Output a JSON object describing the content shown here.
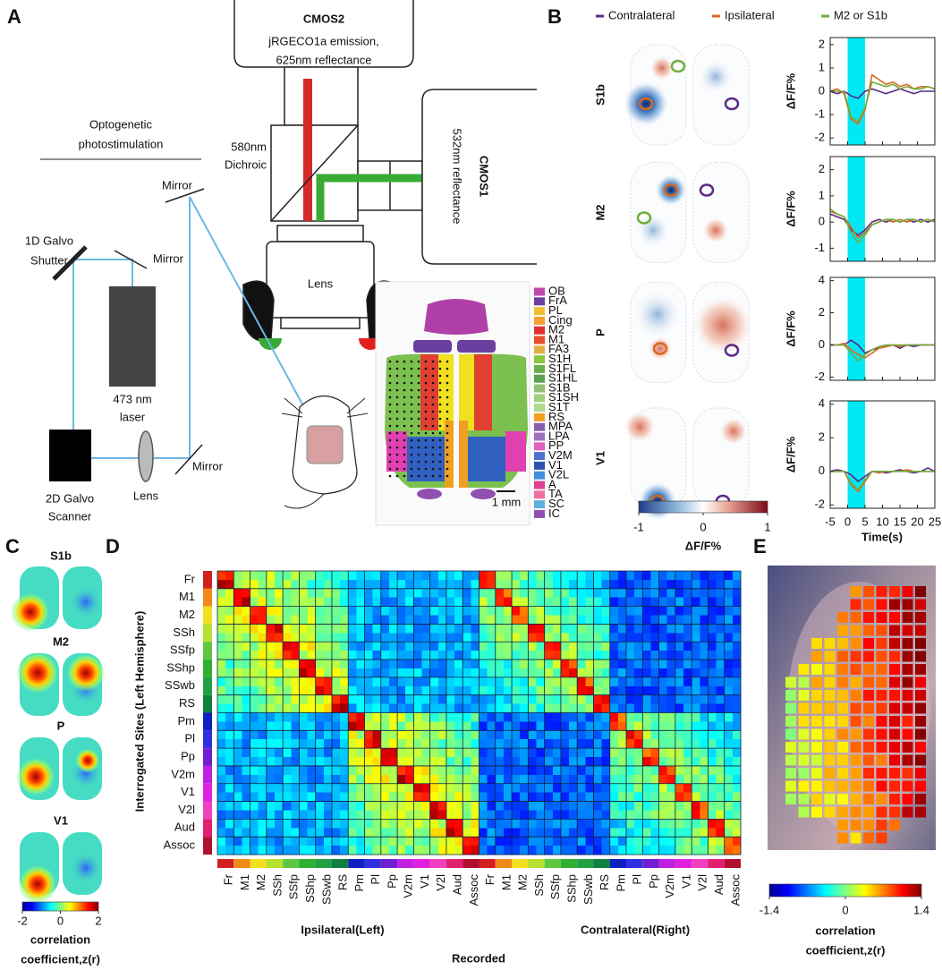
{
  "panel_a": {
    "label": "A",
    "cmos2": {
      "title": "CMOS2",
      "line1": "jRGECO1a emission,",
      "line2": "625nm reflectance"
    },
    "cmos1": {
      "title": "CMOS1",
      "subtitle": "532nm reflectance"
    },
    "dichroic": [
      "580nm",
      "Dichroic"
    ],
    "photostim": [
      "Optogenetic",
      "photostimulation"
    ],
    "mirrors": [
      "Mirror",
      "Mirror",
      "Mirror"
    ],
    "shutter": [
      "1D Galvo",
      "Shutter"
    ],
    "laser": [
      "473 nm",
      "laser"
    ],
    "scanner": [
      "2D Galvo",
      "Scanner"
    ],
    "lens_optic": "Lens",
    "lens_camera": "Lens",
    "scale_bar": "1 mm",
    "atlas_legend": [
      {
        "label": "OB",
        "color": "#c04ab0"
      },
      {
        "label": "FrA",
        "color": "#6b3fa0"
      },
      {
        "label": "PL",
        "color": "#f0c030"
      },
      {
        "label": "Cing",
        "color": "#f5a030"
      },
      {
        "label": "M2",
        "color": "#e03030"
      },
      {
        "label": "M1",
        "color": "#e8502a"
      },
      {
        "label": "FA3",
        "color": "#e0b040"
      },
      {
        "label": "S1H",
        "color": "#8cc63f"
      },
      {
        "label": "S1FL",
        "color": "#6ab04c"
      },
      {
        "label": "S1HL",
        "color": "#5aa050"
      },
      {
        "label": "S1B",
        "color": "#90c070"
      },
      {
        "label": "S1SH",
        "color": "#a0d080"
      },
      {
        "label": "S1T",
        "color": "#b0d890"
      },
      {
        "label": "RS",
        "color": "#f0a020"
      },
      {
        "label": "MPA",
        "color": "#8a5cb0"
      },
      {
        "label": "LPA",
        "color": "#a070c0"
      },
      {
        "label": "PP",
        "color": "#e060c0"
      },
      {
        "label": "V2M",
        "color": "#5070d0"
      },
      {
        "label": "V1",
        "color": "#3050b0"
      },
      {
        "label": "V2L",
        "color": "#4090e0"
      },
      {
        "label": "A",
        "color": "#e04090"
      },
      {
        "label": "TA",
        "color": "#f070a0"
      },
      {
        "label": "SC",
        "color": "#60b0e0"
      },
      {
        "label": "IC",
        "color": "#9050b0"
      }
    ]
  },
  "panel_b": {
    "label": "B",
    "series": [
      {
        "name": "Contralateral",
        "color": "#5b2a86"
      },
      {
        "name": "Ipsilateral",
        "color": "#d8691f"
      },
      {
        "name": "M2 or S1b",
        "color": "#6fae3c"
      }
    ],
    "x": [
      -5,
      -3,
      -1,
      1,
      3,
      5,
      7,
      9,
      11,
      13,
      15,
      17,
      19,
      21,
      23,
      25
    ],
    "xlim": [
      -5,
      25
    ],
    "xticks": [
      -5,
      0,
      5,
      10,
      15,
      20,
      25
    ],
    "xlabel": "Time(s)",
    "ylabel": "ΔF/F%",
    "stim_window": [
      0,
      5
    ],
    "rows": [
      {
        "label": "S1b",
        "ylim": [
          -2.3,
          2.3
        ],
        "yticks": [
          2,
          1,
          0,
          -1,
          -2
        ],
        "traces": [
          {
            "values": [
              0,
              -0.1,
              0,
              -0.2,
              -0.3,
              0,
              0.1,
              0,
              -0.1,
              0,
              0.1,
              0,
              -0.1,
              0,
              0,
              0
            ]
          },
          {
            "values": [
              0,
              0.1,
              -0.1,
              -1.2,
              -1.4,
              -0.8,
              0.7,
              0.5,
              0.3,
              0.4,
              0.2,
              0.3,
              0.1,
              0.2,
              0.2,
              0.1
            ]
          },
          {
            "values": [
              0,
              0,
              0,
              -1.1,
              -1.3,
              -0.7,
              0.4,
              0.3,
              0.2,
              0.3,
              0.1,
              0.2,
              0.1,
              0.1,
              0.2,
              0.1
            ]
          }
        ]
      },
      {
        "label": "M2",
        "ylim": [
          -1.5,
          2.5
        ],
        "yticks": [
          2,
          1,
          0,
          -1
        ],
        "traces": [
          {
            "values": [
              0.3,
              0.2,
              0.1,
              -0.3,
              -0.5,
              -0.3,
              0,
              0.1,
              0,
              0.1,
              0,
              0.1,
              0,
              0.1,
              0,
              0.1
            ]
          },
          {
            "values": [
              0.4,
              0.3,
              0.2,
              -0.2,
              -0.6,
              -0.4,
              -0.1,
              0,
              0.1,
              0,
              0.1,
              0,
              0.1,
              0,
              0.1,
              0
            ]
          },
          {
            "values": [
              0.5,
              0.3,
              0.2,
              -0.4,
              -0.8,
              -0.5,
              -0.1,
              0,
              0.1,
              0.1,
              0,
              0.1,
              0.1,
              0,
              0.1,
              0
            ]
          }
        ]
      },
      {
        "label": "P",
        "ylim": [
          -2.2,
          4.2
        ],
        "yticks": [
          4,
          2,
          0,
          -2
        ],
        "traces": [
          {
            "values": [
              0,
              0,
              0,
              0.3,
              0,
              -0.5,
              -0.3,
              -0.2,
              -0.1,
              0,
              -0.2,
              0,
              -0.1,
              0,
              0,
              0
            ]
          },
          {
            "values": [
              0,
              0,
              0.1,
              -0.3,
              -0.6,
              -0.8,
              -0.5,
              -0.2,
              -0.1,
              0,
              -0.1,
              0,
              0,
              0,
              0,
              0
            ]
          },
          {
            "values": [
              0,
              0,
              0,
              -0.5,
              -1,
              -0.6,
              -0.3,
              -0.1,
              0,
              0,
              0,
              0,
              0,
              0,
              0,
              0
            ]
          }
        ]
      },
      {
        "label": "V1",
        "ylim": [
          -2.2,
          4.2
        ],
        "yticks": [
          4,
          2,
          0,
          -2
        ],
        "traces": [
          {
            "values": [
              0,
              0.1,
              0,
              -0.2,
              -0.6,
              -0.3,
              0,
              0,
              -0.1,
              0,
              0.1,
              0,
              -0.1,
              0,
              0.2,
              0
            ]
          },
          {
            "values": [
              0,
              0,
              0,
              -0.8,
              -1.2,
              -0.6,
              0,
              -0.1,
              0,
              0,
              0,
              0.1,
              0,
              0,
              0,
              0
            ]
          },
          {
            "values": [
              0,
              0,
              0,
              -0.7,
              -1.1,
              -0.5,
              0,
              0,
              0,
              0,
              0,
              0,
              0,
              0,
              0,
              0
            ]
          }
        ]
      }
    ],
    "colorbar": {
      "lim": [
        -1,
        1
      ],
      "ticks": [
        -1,
        0,
        1
      ],
      "label": "ΔF/F%"
    }
  },
  "panel_c": {
    "label": "C",
    "rows": [
      "S1b",
      "M2",
      "P",
      "V1"
    ],
    "colorbar": {
      "lim": [
        -2,
        2
      ],
      "ticks": [
        -2,
        0,
        2
      ],
      "label": [
        "correlation",
        "coefficient,z(r)"
      ]
    }
  },
  "panel_d": {
    "label": "D",
    "regions": [
      {
        "label": "Fr",
        "color": "#d02020"
      },
      {
        "label": "M1",
        "color": "#f08a1a"
      },
      {
        "label": "M2",
        "color": "#f0e020"
      },
      {
        "label": "SSh",
        "color": "#b8e030"
      },
      {
        "label": "SSfp",
        "color": "#60c840"
      },
      {
        "label": "SShp",
        "color": "#30b030"
      },
      {
        "label": "SSwb",
        "color": "#20a040"
      },
      {
        "label": "RS",
        "color": "#108040"
      },
      {
        "label": "Pm",
        "color": "#1020c0"
      },
      {
        "label": "Pl",
        "color": "#3030e0"
      },
      {
        "label": "Pp",
        "color": "#7020d0"
      },
      {
        "label": "V2m",
        "color": "#c020e0"
      },
      {
        "label": "V1",
        "color": "#e020e0"
      },
      {
        "label": "V2l",
        "color": "#f040c0"
      },
      {
        "label": "Aud",
        "color": "#e02070"
      },
      {
        "label": "Assoc",
        "color": "#b01030"
      }
    ],
    "ylabel": "Interrogated Sites (Left Hemisphere)",
    "ipsi_label": "Ipsilateral(Left)",
    "contra_label": "Contralateral(Right)",
    "xlabel": "Recorded"
  },
  "panel_e": {
    "label": "E",
    "colorbar": {
      "lim": [
        -1.4,
        1.4
      ],
      "ticks": [
        -1.4,
        0,
        1.4
      ],
      "label": [
        "correlation",
        "coefficient,z(r)"
      ]
    }
  }
}
